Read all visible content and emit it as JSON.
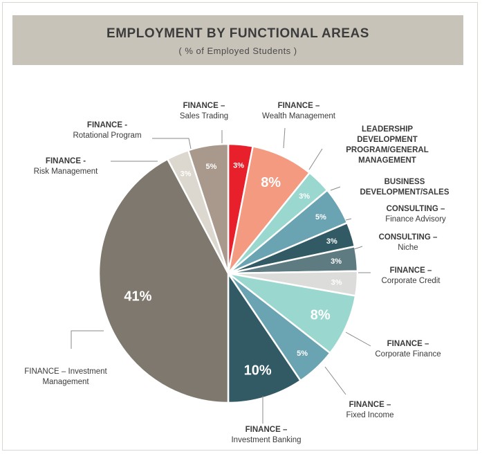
{
  "chart_data": {
    "type": "pie",
    "title": "EMPLOYMENT BY FUNCTIONAL AREAS",
    "subtitle": "( % of Employed Students )",
    "slices": [
      {
        "name": "FINANCE – Sales Trading",
        "label_lines": [
          "FINANCE –",
          "Sales Trading"
        ],
        "value_label": "3%",
        "angle": 11.0,
        "color": "#e8202c",
        "text_color": "#ffffff",
        "side": "right"
      },
      {
        "name": "FINANCE – Wealth Management",
        "label_lines": [
          "FINANCE –",
          "Wealth Management"
        ],
        "value_label": "8%",
        "angle": 28.0,
        "color": "#f49a80",
        "text_color": "#ffffff",
        "side": "right"
      },
      {
        "name": "LEADERSHIP DEVELOPMENT PROGRAM/GENERAL MANAGEMENT",
        "label_lines": [
          "LEADERSHIP",
          "DEVELOPMENT",
          "PROGRAM/GENERAL",
          "MANAGEMENT"
        ],
        "value_label": "3%",
        "angle": 11.0,
        "color": "#9ad8cf",
        "text_color": "#ffffff",
        "side": "right"
      },
      {
        "name": "BUSINESS DEVELOPMENT/SALES",
        "label_lines": [
          "BUSINESS",
          "DEVELOPMENT/SALES"
        ],
        "value_label": "5%",
        "angle": 17.0,
        "color": "#6aa3b1",
        "text_color": "#ffffff",
        "side": "right"
      },
      {
        "name": "CONSULTING – Finance Advisory",
        "label_lines": [
          "CONSULTING –",
          "Finance Advisory"
        ],
        "value_label": "3%",
        "angle": 11.0,
        "color": "#325a64",
        "text_color": "#ffffff",
        "side": "right"
      },
      {
        "name": "CONSULTING – Niche",
        "label_lines": [
          "CONSULTING –",
          "Niche"
        ],
        "value_label": "3%",
        "angle": 11.0,
        "color": "#5f7b82",
        "text_color": "#ffffff",
        "side": "right"
      },
      {
        "name": "FINANCE – Corporate Credit",
        "label_lines": [
          "FINANCE –",
          "Corporate Credit"
        ],
        "value_label": "3%",
        "angle": 11.0,
        "color": "#dcdcda",
        "text_color": "#ffffff",
        "side": "right"
      },
      {
        "name": "FINANCE – Corporate Finance",
        "label_lines": [
          "FINANCE –",
          "Corporate Finance"
        ],
        "value_label": "8%",
        "angle": 28.0,
        "color": "#9ad8cf",
        "text_color": "#ffffff",
        "side": "right"
      },
      {
        "name": "FINANCE – Fixed Income",
        "label_lines": [
          "FINANCE –",
          "Fixed Income"
        ],
        "value_label": "5%",
        "angle": 18.0,
        "color": "#6aa3b1",
        "text_color": "#ffffff",
        "side": "right"
      },
      {
        "name": "FINANCE – Investment Banking",
        "label_lines": [
          "FINANCE –",
          "Investment Banking"
        ],
        "value_label": "10%",
        "angle": 34.0,
        "color": "#325a64",
        "text_color": "#ffffff",
        "side": "right"
      },
      {
        "name": "FINANCE – Investment Management",
        "label_lines": [
          "FINANCE – Investment",
          "Management"
        ],
        "value_label": "41%",
        "angle": 152.0,
        "color": "#7f786e",
        "text_color": "#ffffff",
        "side": "left"
      },
      {
        "name": "FINANCE - Risk Management",
        "label_lines": [
          "FINANCE -",
          "Risk Management"
        ],
        "value_label": "3%",
        "angle": 10.0,
        "color": "#ddd8cf",
        "text_color": "#ffffff",
        "side": "left"
      },
      {
        "name": "FINANCE - Rotational Program",
        "label_lines": [
          "FINANCE -",
          "Rotational Program"
        ],
        "value_label": "5%",
        "angle": 18.0,
        "color": "#a9988c",
        "text_color": "#ffffff",
        "side": "left"
      }
    ]
  }
}
